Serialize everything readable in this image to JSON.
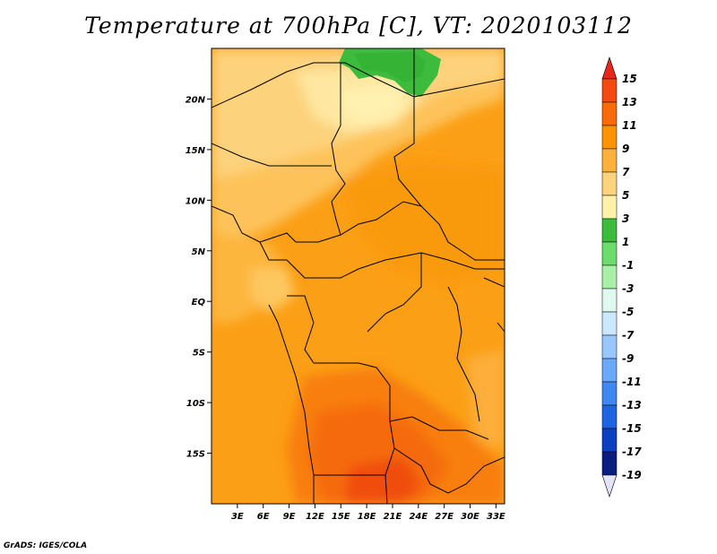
{
  "title": "Temperature at 700hPa [C], VT: 2020103112",
  "credit": "GrADS: IGES/COLA",
  "map": {
    "lon_range": [
      0,
      34
    ],
    "lat_range": [
      -20,
      25
    ],
    "x_ticks": [
      "3E",
      "6E",
      "9E",
      "12E",
      "15E",
      "18E",
      "21E",
      "24E",
      "27E",
      "30E",
      "33E"
    ],
    "x_tick_values": [
      3,
      6,
      9,
      12,
      15,
      18,
      21,
      24,
      27,
      30,
      33
    ],
    "y_ticks": [
      "20N",
      "15N",
      "10N",
      "5N",
      "EQ",
      "5S",
      "10S",
      "15S"
    ],
    "y_tick_values": [
      20,
      15,
      10,
      5,
      0,
      -5,
      -10,
      -15
    ]
  },
  "colorbar": {
    "levels": [
      "15",
      "13",
      "11",
      "9",
      "7",
      "5",
      "3",
      "1",
      "-1",
      "-3",
      "-5",
      "-7",
      "-9",
      "-11",
      "-13",
      "-15",
      "-17",
      "-19"
    ],
    "colors": [
      "#e8261c",
      "#f24a10",
      "#f86a0a",
      "#fb9400",
      "#fdb13a",
      "#fdd27c",
      "#fff1a8",
      "#3cbb3c",
      "#6cdc6c",
      "#a8f0a8",
      "#dff8f0",
      "#cce8ff",
      "#98c8ff",
      "#6aa8f8",
      "#3e88f0",
      "#1e64e0",
      "#0c40c0",
      "#0a1e80",
      "#000060"
    ]
  }
}
